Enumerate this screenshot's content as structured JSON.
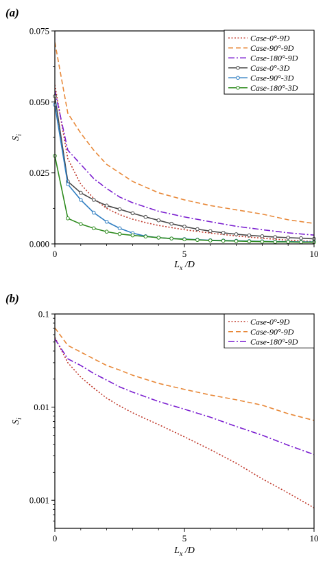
{
  "chart_data": [
    {
      "panel_label": "(a)",
      "type": "line",
      "xlabel_main": "L",
      "xlabel_sub": "x",
      "xlabel_rest": " /D",
      "ylabel_main": "S",
      "ylabel_sub": "i",
      "xlim": [
        0,
        10
      ],
      "ylim": [
        0,
        0.075
      ],
      "yscale": "linear",
      "xticks": [
        0,
        5,
        10
      ],
      "yticks": [
        0,
        0.025,
        0.05,
        0.075
      ],
      "ytick_labels": [
        "0.000",
        "0.025",
        "0.050",
        "0.075"
      ],
      "xtick_labels": [
        "0",
        "5",
        "10"
      ],
      "grid": false,
      "legend_position": "top-right",
      "series": [
        {
          "name": "Case-0°-9D",
          "color": "#c0392b",
          "dash": "2,2.5",
          "marker": false,
          "x": [
            0,
            0.5,
            1,
            1.5,
            2,
            2.5,
            3,
            3.5,
            4,
            5,
            6,
            7,
            8,
            9,
            10
          ],
          "y": [
            0.056,
            0.03,
            0.021,
            0.016,
            0.0125,
            0.0103,
            0.0087,
            0.0075,
            0.0065,
            0.005,
            0.0038,
            0.0028,
            0.002,
            0.0013,
            0.0008
          ]
        },
        {
          "name": "Case-90°-9D",
          "color": "#e8893a",
          "dash": "7,4",
          "marker": false,
          "x": [
            0,
            0.5,
            1,
            1.5,
            2,
            2.5,
            3,
            4,
            5,
            6,
            7,
            8,
            9,
            10
          ],
          "y": [
            0.071,
            0.046,
            0.039,
            0.033,
            0.028,
            0.025,
            0.022,
            0.018,
            0.0155,
            0.0135,
            0.012,
            0.0105,
            0.0085,
            0.0072
          ]
        },
        {
          "name": "Case-180°-9D",
          "color": "#7b1fd0",
          "dash": "9,3,2,3",
          "marker": false,
          "x": [
            0,
            0.5,
            1,
            1.5,
            2,
            2.5,
            3,
            4,
            5,
            6,
            7,
            8,
            9,
            10
          ],
          "y": [
            0.054,
            0.033,
            0.028,
            0.023,
            0.0195,
            0.0165,
            0.0145,
            0.0115,
            0.0095,
            0.0078,
            0.0062,
            0.005,
            0.0039,
            0.0031
          ]
        },
        {
          "name": "Case-0°-3D",
          "color": "#4a4a4a",
          "dash": "",
          "marker": true,
          "x": [
            0,
            0.5,
            1,
            1.5,
            2,
            2.5,
            3,
            3.5,
            4,
            4.5,
            5,
            5.5,
            6,
            6.5,
            7,
            7.5,
            8,
            8.5,
            9,
            9.5,
            10
          ],
          "y": [
            0.052,
            0.022,
            0.018,
            0.0155,
            0.0135,
            0.0122,
            0.0108,
            0.0095,
            0.0083,
            0.0071,
            0.0061,
            0.0052,
            0.0045,
            0.0039,
            0.0034,
            0.003,
            0.0027,
            0.0024,
            0.0022,
            0.002,
            0.0018
          ]
        },
        {
          "name": "Case-90°-3D",
          "color": "#2f7ec2",
          "dash": "",
          "marker": true,
          "x": [
            0,
            0.5,
            1,
            1.5,
            2,
            2.5,
            3,
            3.5,
            4,
            4.5,
            5,
            5.5,
            6,
            6.5,
            7,
            7.5,
            8,
            8.5,
            9,
            9.5,
            10
          ],
          "y": [
            0.049,
            0.021,
            0.0155,
            0.011,
            0.0078,
            0.0055,
            0.0038,
            0.0027,
            0.0022,
            0.0019,
            0.0017,
            0.0015,
            0.0013,
            0.0012,
            0.0011,
            0.001,
            0.0009,
            0.0008,
            0.0008,
            0.0007,
            0.0007
          ]
        },
        {
          "name": "Case-180°-3D",
          "color": "#2e8b1e",
          "dash": "",
          "marker": true,
          "x": [
            0,
            0.5,
            1,
            1.5,
            2,
            2.5,
            3,
            3.5,
            4,
            4.5,
            5,
            5.5,
            6,
            6.5,
            7,
            7.5,
            8,
            8.5,
            9,
            9.5,
            10
          ],
          "y": [
            0.031,
            0.009,
            0.007,
            0.0055,
            0.0043,
            0.0035,
            0.003,
            0.0026,
            0.0022,
            0.0019,
            0.0016,
            0.0014,
            0.0012,
            0.0011,
            0.001,
            0.0009,
            0.0008,
            0.0007,
            0.0007,
            0.0006,
            0.0006
          ]
        }
      ]
    },
    {
      "panel_label": "(b)",
      "type": "line",
      "xlabel_main": "L",
      "xlabel_sub": "x",
      "xlabel_rest": " /D",
      "ylabel_main": "S",
      "ylabel_sub": "i",
      "xlim": [
        0,
        10
      ],
      "ylim": [
        0.0005,
        0.1
      ],
      "yscale": "log",
      "xticks": [
        0,
        5,
        10
      ],
      "yticks": [
        0.001,
        0.01,
        0.1
      ],
      "ytick_labels": [
        "0.001",
        "0.01",
        "0.1"
      ],
      "xtick_labels": [
        "0",
        "5",
        "10"
      ],
      "grid": false,
      "legend_position": "top-right",
      "series": [
        {
          "name": "Case-0°-9D",
          "color": "#c0392b",
          "dash": "2,2.5",
          "marker": false,
          "x": [
            0,
            0.5,
            1,
            1.5,
            2,
            2.5,
            3,
            3.5,
            4,
            5,
            6,
            7,
            8,
            9,
            10
          ],
          "y": [
            0.056,
            0.03,
            0.021,
            0.016,
            0.0125,
            0.0103,
            0.0087,
            0.0075,
            0.0065,
            0.0048,
            0.0035,
            0.0025,
            0.0017,
            0.0012,
            0.00083
          ]
        },
        {
          "name": "Case-90°-9D",
          "color": "#e8893a",
          "dash": "7,4",
          "marker": false,
          "x": [
            0,
            0.5,
            1,
            1.5,
            2,
            2.5,
            3,
            4,
            5,
            6,
            7,
            8,
            9,
            10
          ],
          "y": [
            0.071,
            0.046,
            0.039,
            0.033,
            0.028,
            0.025,
            0.022,
            0.018,
            0.0155,
            0.0135,
            0.012,
            0.0105,
            0.0085,
            0.0072
          ]
        },
        {
          "name": "Case-180°-9D",
          "color": "#7b1fd0",
          "dash": "9,3,2,3",
          "marker": false,
          "x": [
            0,
            0.5,
            1,
            1.5,
            2,
            2.5,
            3,
            4,
            5,
            6,
            7,
            8,
            9,
            10
          ],
          "y": [
            0.054,
            0.033,
            0.028,
            0.023,
            0.0195,
            0.0165,
            0.0145,
            0.0115,
            0.0095,
            0.0078,
            0.0062,
            0.005,
            0.0039,
            0.0031
          ]
        }
      ]
    }
  ]
}
